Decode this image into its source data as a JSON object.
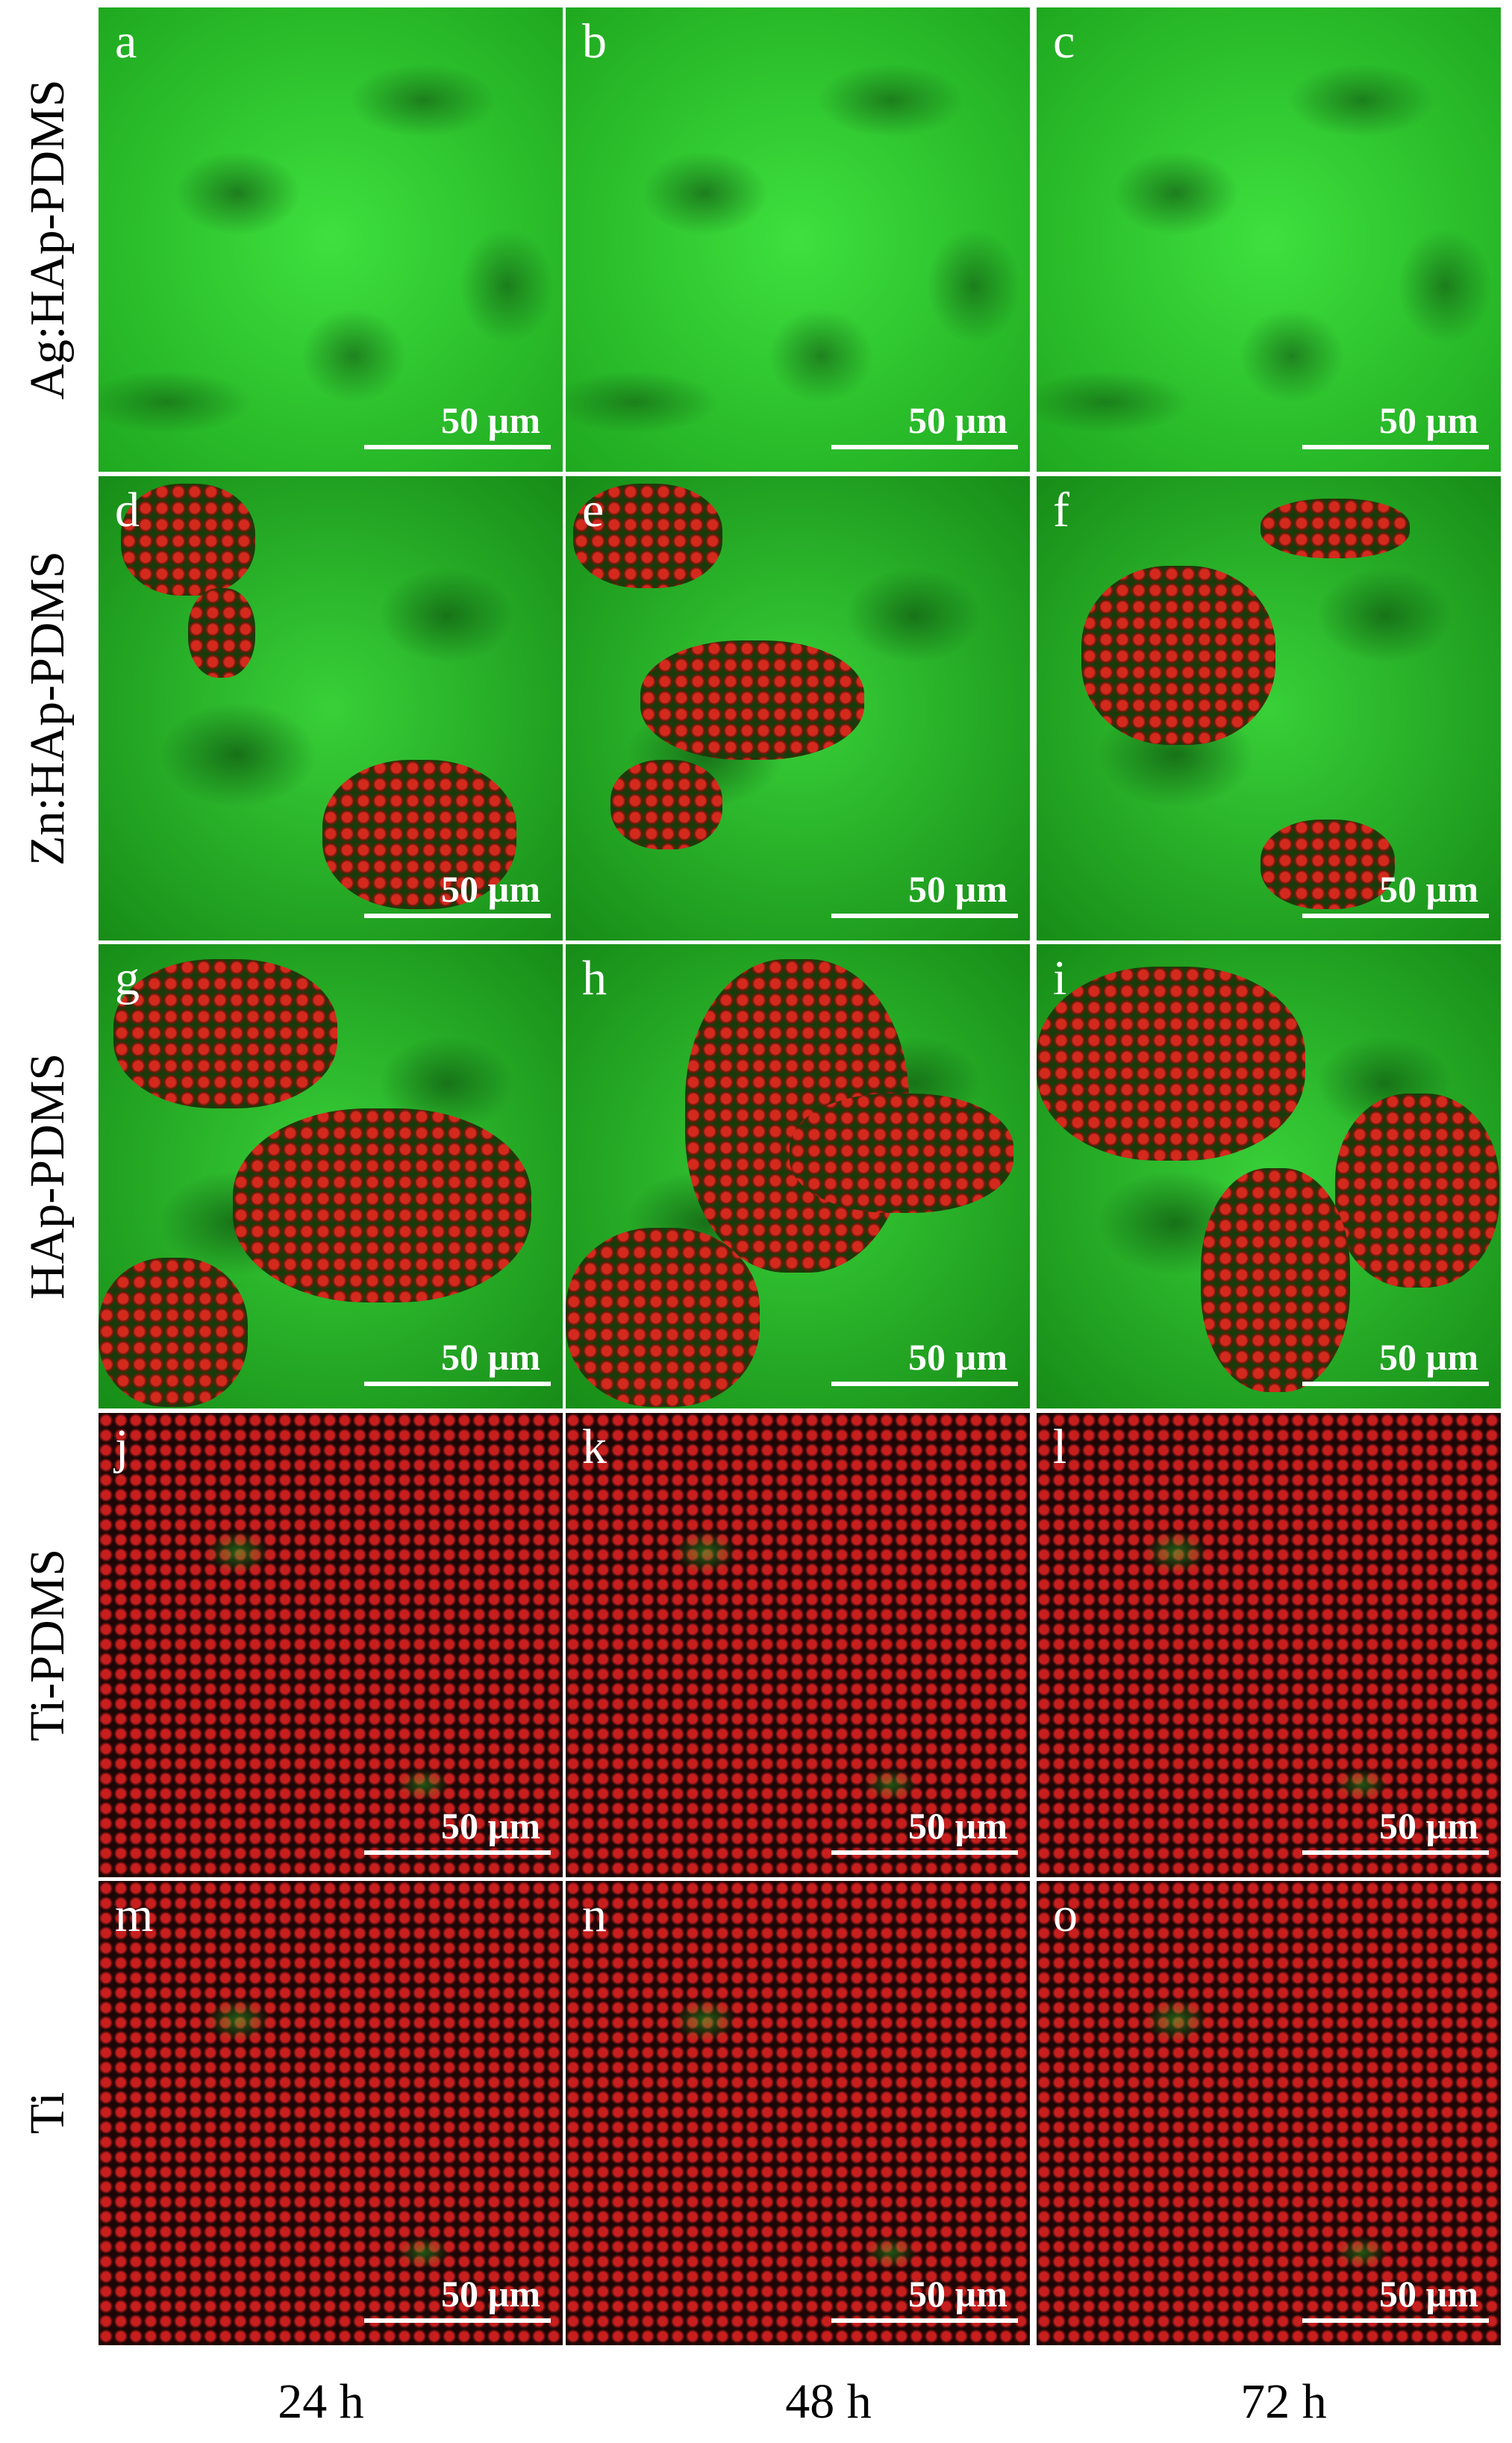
{
  "rows": [
    {
      "label": "Ag:HAp-PDMS",
      "panels": [
        {
          "letter": "a",
          "scale_bar": "50 µm"
        },
        {
          "letter": "b",
          "scale_bar": "50 µm"
        },
        {
          "letter": "c",
          "scale_bar": "50 µm"
        }
      ]
    },
    {
      "label": "Zn:HAp-PDMS",
      "panels": [
        {
          "letter": "d",
          "scale_bar": "50 µm"
        },
        {
          "letter": "e",
          "scale_bar": "50 µm"
        },
        {
          "letter": "f",
          "scale_bar": "50 µm"
        }
      ]
    },
    {
      "label": "HAp-PDMS",
      "panels": [
        {
          "letter": "g",
          "scale_bar": "50 µm"
        },
        {
          "letter": "h",
          "scale_bar": "50 µm"
        },
        {
          "letter": "i",
          "scale_bar": "50 µm"
        }
      ]
    },
    {
      "label": "Ti-PDMS",
      "panels": [
        {
          "letter": "j",
          "scale_bar": "50 µm"
        },
        {
          "letter": "k",
          "scale_bar": "50 µm"
        },
        {
          "letter": "l",
          "scale_bar": "50 µm"
        }
      ]
    },
    {
      "label": "Ti",
      "panels": [
        {
          "letter": "m",
          "scale_bar": "50 µm"
        },
        {
          "letter": "n",
          "scale_bar": "50 µm"
        },
        {
          "letter": "o",
          "scale_bar": "50 µm"
        }
      ]
    }
  ],
  "columns": [
    "24 h",
    "48 h",
    "72 h"
  ]
}
